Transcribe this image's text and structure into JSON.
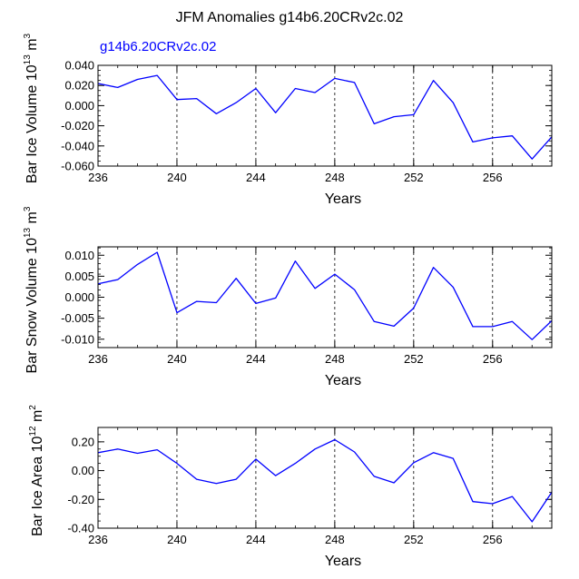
{
  "title": "JFM Anomalies g14b6.20CRv2c.02",
  "chart_data": [
    {
      "type": "line",
      "title": "JFM Anomalies g14b6.20CRv2c.02",
      "legend": "g14b6.20CRv2c.02",
      "xlabel": "Years",
      "ylabel": "Bar Ice Volume 10^13 m^3",
      "ylabel_main": "Bar Ice Volume 10",
      "ylabel_exp": "13",
      "ylabel_unit": " m",
      "ylabel_unit_exp": "3",
      "xlim": [
        236,
        259
      ],
      "ylim": [
        -0.06,
        0.04
      ],
      "xticks": [
        236,
        240,
        244,
        248,
        252,
        256
      ],
      "xtick_labels": [
        "236",
        "240",
        "244",
        "248",
        "252",
        "256"
      ],
      "yticks": [
        -0.06,
        -0.04,
        -0.02,
        0.0,
        0.02,
        0.04
      ],
      "ytick_labels": [
        "-0.060",
        "-0.040",
        "-0.020",
        "0.000",
        "0.020",
        "0.040"
      ],
      "grid": "dashed vertical at 240, 244, 248, 252, 256",
      "x": [
        236,
        237,
        238,
        239,
        240,
        241,
        242,
        243,
        244,
        245,
        246,
        247,
        248,
        249,
        250,
        251,
        252,
        253,
        254,
        255,
        256,
        257,
        258,
        259
      ],
      "series": [
        {
          "name": "g14b6.20CRv2c.02",
          "color": "#0000ff",
          "values": [
            0.022,
            0.018,
            0.026,
            0.03,
            0.006,
            0.007,
            -0.008,
            0.003,
            0.017,
            -0.007,
            0.017,
            0.013,
            0.027,
            0.023,
            -0.018,
            -0.011,
            -0.009,
            0.025,
            0.003,
            -0.036,
            -0.032,
            -0.03,
            -0.053,
            -0.031
          ]
        }
      ]
    },
    {
      "type": "line",
      "xlabel": "Years",
      "ylabel": "Bar Snow Volume 10^13 m^3",
      "ylabel_main": "Bar Snow Volume 10",
      "ylabel_exp": "13",
      "ylabel_unit": " m",
      "ylabel_unit_exp": "3",
      "xlim": [
        236,
        259
      ],
      "ylim": [
        -0.012,
        0.012
      ],
      "xticks": [
        236,
        240,
        244,
        248,
        252,
        256
      ],
      "xtick_labels": [
        "236",
        "240",
        "244",
        "248",
        "252",
        "256"
      ],
      "yticks": [
        -0.01,
        -0.005,
        0.0,
        0.005,
        0.01
      ],
      "ytick_labels": [
        "-0.010",
        "-0.005",
        "0.000",
        "0.005",
        "0.010"
      ],
      "grid": "dashed vertical at 240, 244, 248, 252, 256",
      "x": [
        236,
        237,
        238,
        239,
        240,
        241,
        242,
        243,
        244,
        245,
        246,
        247,
        248,
        249,
        250,
        251,
        252,
        253,
        254,
        255,
        256,
        257,
        258,
        259
      ],
      "series": [
        {
          "name": "g14b6.20CRv2c.02",
          "color": "#0000ff",
          "values": [
            0.0032,
            0.0042,
            0.0078,
            0.0107,
            -0.0037,
            -0.001,
            -0.0013,
            0.0045,
            -0.0015,
            -0.0002,
            0.0086,
            0.0021,
            0.0055,
            0.0018,
            -0.0058,
            -0.0069,
            -0.0026,
            0.0071,
            0.0024,
            -0.007,
            -0.007,
            -0.0058,
            -0.0101,
            -0.0056
          ]
        }
      ]
    },
    {
      "type": "line",
      "xlabel": "Years",
      "ylabel": "Bar Ice Area 10^12 m^2",
      "ylabel_main": "Bar Ice Area 10",
      "ylabel_exp": "12",
      "ylabel_unit": " m",
      "ylabel_unit_exp": "2",
      "xlim": [
        236,
        259
      ],
      "ylim": [
        -0.4,
        0.3
      ],
      "xticks": [
        236,
        240,
        244,
        248,
        252,
        256
      ],
      "xtick_labels": [
        "236",
        "240",
        "244",
        "248",
        "252",
        "256"
      ],
      "yticks": [
        -0.4,
        -0.2,
        0.0,
        0.2
      ],
      "ytick_labels": [
        "-0.40",
        "-0.20",
        "0.00",
        "0.20"
      ],
      "grid": "dashed vertical at 240, 244, 248, 252, 256",
      "x": [
        236,
        237,
        238,
        239,
        240,
        241,
        242,
        243,
        244,
        245,
        246,
        247,
        248,
        249,
        250,
        251,
        252,
        253,
        254,
        255,
        256,
        257,
        258,
        259
      ],
      "series": [
        {
          "name": "g14b6.20CRv2c.02",
          "color": "#0000ff",
          "values": [
            0.125,
            0.15,
            0.12,
            0.145,
            0.05,
            -0.06,
            -0.09,
            -0.06,
            0.08,
            -0.035,
            0.05,
            0.15,
            0.215,
            0.13,
            -0.04,
            -0.085,
            0.055,
            0.125,
            0.085,
            -0.215,
            -0.23,
            -0.18,
            -0.355,
            -0.15
          ]
        }
      ]
    }
  ]
}
